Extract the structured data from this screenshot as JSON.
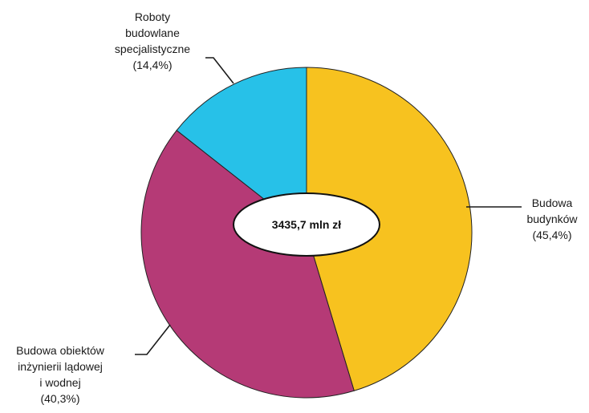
{
  "chart_data": {
    "type": "pie",
    "center_label": "3435,7 mln zł",
    "start": "12 o'clock",
    "direction": "clockwise",
    "slices": [
      {
        "label_lines": [
          "Budowa",
          "budynków",
          "(45,4%)"
        ],
        "value": 45.4,
        "color": "#F7C21F"
      },
      {
        "label_lines": [
          "Budowa obiektów",
          "inżynierii lądowej",
          "i wodnej",
          "(40,3%)"
        ],
        "value": 40.3,
        "color": "#B53A76"
      },
      {
        "label_lines": [
          "Roboty",
          "budowlane",
          "specjalistyczne",
          "(14,4%)"
        ],
        "value": 14.4,
        "color": "#27C1E8"
      }
    ]
  }
}
